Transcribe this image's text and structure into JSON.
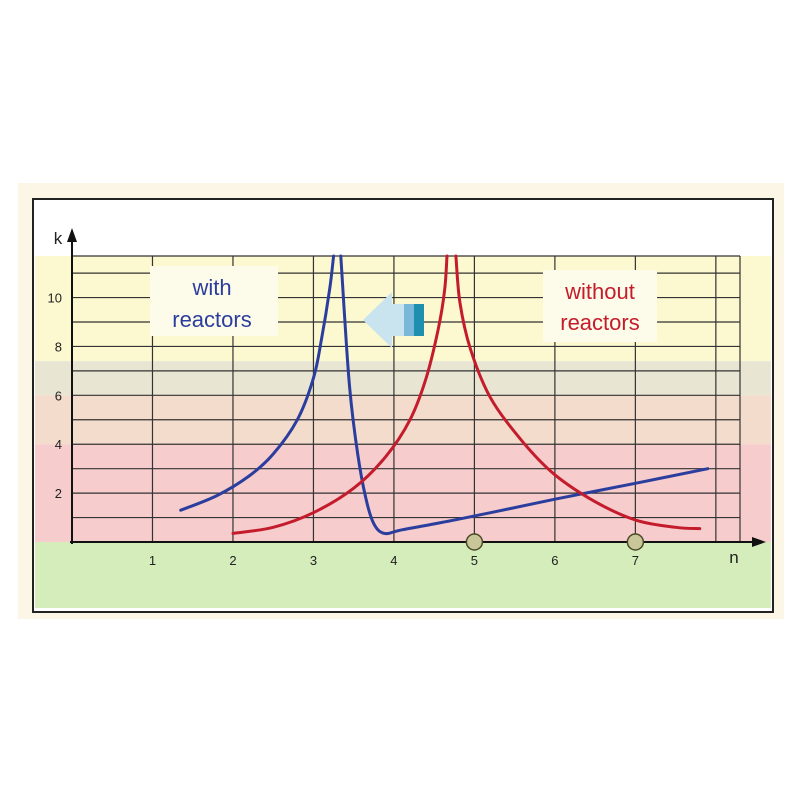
{
  "chart_data": {
    "type": "line",
    "title": "",
    "xlabel": "n",
    "ylabel": "k",
    "xlim": [
      0,
      8.3
    ],
    "ylim": [
      0,
      11.7
    ],
    "x_ticks": [
      1,
      2,
      3,
      4,
      5,
      6,
      7
    ],
    "y_ticks": [
      2,
      4,
      6,
      8,
      10
    ],
    "grid": true,
    "bands": [
      {
        "color": "#fcf8cf",
        "from": 7.4,
        "to": 11.7
      },
      {
        "color": "#e8e6d2",
        "from": 6.0,
        "to": 7.4
      },
      {
        "color": "#f3dccb",
        "from": 4.0,
        "to": 6.0
      },
      {
        "color": "#f6cccc",
        "from": 0.0,
        "to": 4.0
      },
      {
        "color": "#d4edbb",
        "from": -2.7,
        "to": 0.0
      }
    ],
    "series": [
      {
        "color": "#2b3e9e",
        "segments": [
          [
            [
              1.35,
              1.3
            ],
            [
              1.8,
              1.9
            ],
            [
              2.2,
              2.7
            ],
            [
              2.5,
              3.6
            ],
            [
              2.8,
              5.0
            ],
            [
              3.0,
              6.7
            ],
            [
              3.1,
              8.3
            ],
            [
              3.2,
              10.3
            ],
            [
              3.25,
              11.7
            ]
          ],
          [
            [
              3.34,
              11.7
            ],
            [
              3.38,
              9.6
            ],
            [
              3.45,
              6.3
            ],
            [
              3.55,
              3.6
            ],
            [
              3.65,
              1.8
            ],
            [
              3.75,
              0.75
            ],
            [
              3.88,
              0.35
            ],
            [
              4.1,
              0.5
            ],
            [
              4.6,
              0.8
            ],
            [
              5.2,
              1.2
            ],
            [
              6.0,
              1.75
            ],
            [
              7.0,
              2.4
            ],
            [
              7.9,
              3.0
            ]
          ]
        ]
      },
      {
        "color": "#c41c2c",
        "segments": [
          [
            [
              2.0,
              0.35
            ],
            [
              2.5,
              0.6
            ],
            [
              3.0,
              1.2
            ],
            [
              3.5,
              2.2
            ],
            [
              3.9,
              3.5
            ],
            [
              4.2,
              5.0
            ],
            [
              4.4,
              6.7
            ],
            [
              4.55,
              8.7
            ],
            [
              4.63,
              10.3
            ],
            [
              4.66,
              11.7
            ]
          ],
          [
            [
              4.77,
              11.7
            ],
            [
              4.82,
              9.8
            ],
            [
              4.95,
              7.9
            ],
            [
              5.2,
              5.9
            ],
            [
              5.6,
              4.1
            ],
            [
              6.0,
              2.75
            ],
            [
              6.5,
              1.65
            ],
            [
              7.0,
              0.9
            ],
            [
              7.5,
              0.6
            ],
            [
              7.8,
              0.55
            ]
          ]
        ]
      }
    ],
    "markers": [
      {
        "x": 5.0,
        "y": 0
      },
      {
        "x": 7.0,
        "y": 0
      }
    ],
    "annotations": [
      {
        "lines": [
          "with",
          "reactors"
        ],
        "color": "#2b3e9e"
      },
      {
        "lines": [
          "without",
          "reactors"
        ],
        "color": "#c41c2c"
      }
    ]
  },
  "arrow_colors": [
    "#c9e3ef",
    "#79b8d8",
    "#1e8fae"
  ]
}
